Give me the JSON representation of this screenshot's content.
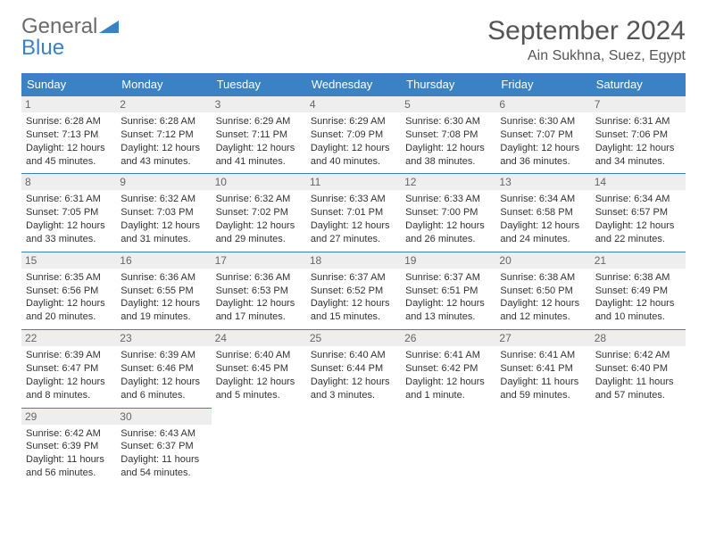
{
  "logo": {
    "word1": "General",
    "word2": "Blue"
  },
  "title": "September 2024",
  "location": "Ain Sukhna, Suez, Egypt",
  "colors": {
    "header_bg": "#3b82c4",
    "header_text": "#ffffff",
    "daynum_bg": "#eeeeee",
    "daynum_text": "#666666",
    "body_text": "#333333",
    "rule": "#3b82c4",
    "page_bg": "#ffffff",
    "logo_gray": "#6b6b6b",
    "logo_blue": "#3b82c4"
  },
  "typography": {
    "title_fontsize": 30,
    "location_fontsize": 16,
    "dayheader_fontsize": 13,
    "daynum_fontsize": 12,
    "cell_fontsize": 11
  },
  "type": "calendar-table",
  "columns": [
    "Sunday",
    "Monday",
    "Tuesday",
    "Wednesday",
    "Thursday",
    "Friday",
    "Saturday"
  ],
  "weeks": [
    [
      {
        "day": "1",
        "sunrise": "Sunrise: 6:28 AM",
        "sunset": "Sunset: 7:13 PM",
        "daylight1": "Daylight: 12 hours",
        "daylight2": "and 45 minutes."
      },
      {
        "day": "2",
        "sunrise": "Sunrise: 6:28 AM",
        "sunset": "Sunset: 7:12 PM",
        "daylight1": "Daylight: 12 hours",
        "daylight2": "and 43 minutes."
      },
      {
        "day": "3",
        "sunrise": "Sunrise: 6:29 AM",
        "sunset": "Sunset: 7:11 PM",
        "daylight1": "Daylight: 12 hours",
        "daylight2": "and 41 minutes."
      },
      {
        "day": "4",
        "sunrise": "Sunrise: 6:29 AM",
        "sunset": "Sunset: 7:09 PM",
        "daylight1": "Daylight: 12 hours",
        "daylight2": "and 40 minutes."
      },
      {
        "day": "5",
        "sunrise": "Sunrise: 6:30 AM",
        "sunset": "Sunset: 7:08 PM",
        "daylight1": "Daylight: 12 hours",
        "daylight2": "and 38 minutes."
      },
      {
        "day": "6",
        "sunrise": "Sunrise: 6:30 AM",
        "sunset": "Sunset: 7:07 PM",
        "daylight1": "Daylight: 12 hours",
        "daylight2": "and 36 minutes."
      },
      {
        "day": "7",
        "sunrise": "Sunrise: 6:31 AM",
        "sunset": "Sunset: 7:06 PM",
        "daylight1": "Daylight: 12 hours",
        "daylight2": "and 34 minutes."
      }
    ],
    [
      {
        "day": "8",
        "sunrise": "Sunrise: 6:31 AM",
        "sunset": "Sunset: 7:05 PM",
        "daylight1": "Daylight: 12 hours",
        "daylight2": "and 33 minutes."
      },
      {
        "day": "9",
        "sunrise": "Sunrise: 6:32 AM",
        "sunset": "Sunset: 7:03 PM",
        "daylight1": "Daylight: 12 hours",
        "daylight2": "and 31 minutes."
      },
      {
        "day": "10",
        "sunrise": "Sunrise: 6:32 AM",
        "sunset": "Sunset: 7:02 PM",
        "daylight1": "Daylight: 12 hours",
        "daylight2": "and 29 minutes."
      },
      {
        "day": "11",
        "sunrise": "Sunrise: 6:33 AM",
        "sunset": "Sunset: 7:01 PM",
        "daylight1": "Daylight: 12 hours",
        "daylight2": "and 27 minutes."
      },
      {
        "day": "12",
        "sunrise": "Sunrise: 6:33 AM",
        "sunset": "Sunset: 7:00 PM",
        "daylight1": "Daylight: 12 hours",
        "daylight2": "and 26 minutes."
      },
      {
        "day": "13",
        "sunrise": "Sunrise: 6:34 AM",
        "sunset": "Sunset: 6:58 PM",
        "daylight1": "Daylight: 12 hours",
        "daylight2": "and 24 minutes."
      },
      {
        "day": "14",
        "sunrise": "Sunrise: 6:34 AM",
        "sunset": "Sunset: 6:57 PM",
        "daylight1": "Daylight: 12 hours",
        "daylight2": "and 22 minutes."
      }
    ],
    [
      {
        "day": "15",
        "sunrise": "Sunrise: 6:35 AM",
        "sunset": "Sunset: 6:56 PM",
        "daylight1": "Daylight: 12 hours",
        "daylight2": "and 20 minutes."
      },
      {
        "day": "16",
        "sunrise": "Sunrise: 6:36 AM",
        "sunset": "Sunset: 6:55 PM",
        "daylight1": "Daylight: 12 hours",
        "daylight2": "and 19 minutes."
      },
      {
        "day": "17",
        "sunrise": "Sunrise: 6:36 AM",
        "sunset": "Sunset: 6:53 PM",
        "daylight1": "Daylight: 12 hours",
        "daylight2": "and 17 minutes."
      },
      {
        "day": "18",
        "sunrise": "Sunrise: 6:37 AM",
        "sunset": "Sunset: 6:52 PM",
        "daylight1": "Daylight: 12 hours",
        "daylight2": "and 15 minutes."
      },
      {
        "day": "19",
        "sunrise": "Sunrise: 6:37 AM",
        "sunset": "Sunset: 6:51 PM",
        "daylight1": "Daylight: 12 hours",
        "daylight2": "and 13 minutes."
      },
      {
        "day": "20",
        "sunrise": "Sunrise: 6:38 AM",
        "sunset": "Sunset: 6:50 PM",
        "daylight1": "Daylight: 12 hours",
        "daylight2": "and 12 minutes."
      },
      {
        "day": "21",
        "sunrise": "Sunrise: 6:38 AM",
        "sunset": "Sunset: 6:49 PM",
        "daylight1": "Daylight: 12 hours",
        "daylight2": "and 10 minutes."
      }
    ],
    [
      {
        "day": "22",
        "sunrise": "Sunrise: 6:39 AM",
        "sunset": "Sunset: 6:47 PM",
        "daylight1": "Daylight: 12 hours",
        "daylight2": "and 8 minutes."
      },
      {
        "day": "23",
        "sunrise": "Sunrise: 6:39 AM",
        "sunset": "Sunset: 6:46 PM",
        "daylight1": "Daylight: 12 hours",
        "daylight2": "and 6 minutes."
      },
      {
        "day": "24",
        "sunrise": "Sunrise: 6:40 AM",
        "sunset": "Sunset: 6:45 PM",
        "daylight1": "Daylight: 12 hours",
        "daylight2": "and 5 minutes."
      },
      {
        "day": "25",
        "sunrise": "Sunrise: 6:40 AM",
        "sunset": "Sunset: 6:44 PM",
        "daylight1": "Daylight: 12 hours",
        "daylight2": "and 3 minutes."
      },
      {
        "day": "26",
        "sunrise": "Sunrise: 6:41 AM",
        "sunset": "Sunset: 6:42 PM",
        "daylight1": "Daylight: 12 hours",
        "daylight2": "and 1 minute."
      },
      {
        "day": "27",
        "sunrise": "Sunrise: 6:41 AM",
        "sunset": "Sunset: 6:41 PM",
        "daylight1": "Daylight: 11 hours",
        "daylight2": "and 59 minutes."
      },
      {
        "day": "28",
        "sunrise": "Sunrise: 6:42 AM",
        "sunset": "Sunset: 6:40 PM",
        "daylight1": "Daylight: 11 hours",
        "daylight2": "and 57 minutes."
      }
    ],
    [
      {
        "day": "29",
        "sunrise": "Sunrise: 6:42 AM",
        "sunset": "Sunset: 6:39 PM",
        "daylight1": "Daylight: 11 hours",
        "daylight2": "and 56 minutes."
      },
      {
        "day": "30",
        "sunrise": "Sunrise: 6:43 AM",
        "sunset": "Sunset: 6:37 PM",
        "daylight1": "Daylight: 11 hours",
        "daylight2": "and 54 minutes."
      },
      null,
      null,
      null,
      null,
      null
    ]
  ]
}
